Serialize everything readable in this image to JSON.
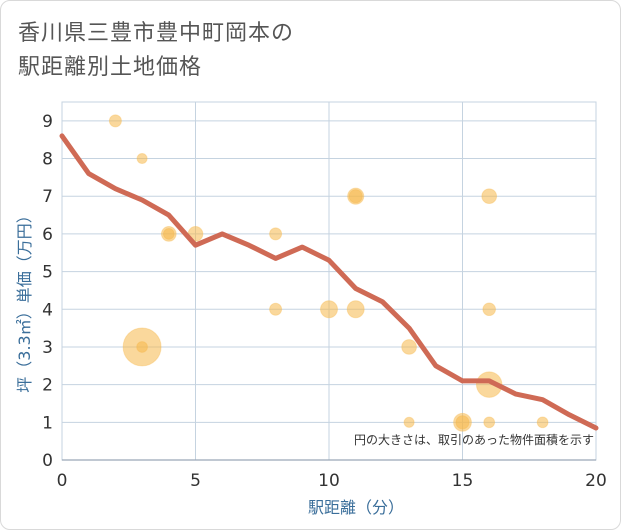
{
  "title_lines": [
    "香川県三豊市豊中町岡本の",
    "駅距離別土地価格"
  ],
  "chart_data": {
    "type": "scatter",
    "title": "香川県三豊市豊中町岡本の駅距離別土地価格",
    "xlabel": "駅距離（分）",
    "ylabel": "坪（3.3㎡）単価（万円）",
    "xlim": [
      0,
      20
    ],
    "ylim": [
      0,
      9.5
    ],
    "xticks": [
      0,
      5,
      10,
      15,
      20
    ],
    "yticks": [
      0,
      1,
      2,
      3,
      4,
      5,
      6,
      7,
      8,
      9
    ],
    "grid": true,
    "note": "円の大きさは、取引のあった物件面積を示す",
    "colors": {
      "bubble": "#f5b84a",
      "line": "#cf6a55",
      "grid": "#c5d3e0",
      "axis_text": "#3a6e9a"
    },
    "points": [
      {
        "x": 2,
        "y": 9.0,
        "size": 1
      },
      {
        "x": 3,
        "y": 8.0,
        "size": 0.7
      },
      {
        "x": 3,
        "y": 3.0,
        "size": 10
      },
      {
        "x": 3,
        "y": 3.0,
        "size": 0.8
      },
      {
        "x": 4,
        "y": 6.0,
        "size": 1.5
      },
      {
        "x": 4,
        "y": 6.0,
        "size": 0.8
      },
      {
        "x": 5,
        "y": 6.0,
        "size": 1.5
      },
      {
        "x": 8,
        "y": 6.0,
        "size": 1
      },
      {
        "x": 8,
        "y": 4.0,
        "size": 1
      },
      {
        "x": 10,
        "y": 4.0,
        "size": 2
      },
      {
        "x": 11,
        "y": 4.0,
        "size": 2
      },
      {
        "x": 11,
        "y": 7.0,
        "size": 1.8
      },
      {
        "x": 11,
        "y": 7.0,
        "size": 1.2
      },
      {
        "x": 13,
        "y": 3.0,
        "size": 1.5
      },
      {
        "x": 13,
        "y": 1.0,
        "size": 0.7
      },
      {
        "x": 15,
        "y": 1.0,
        "size": 2.2
      },
      {
        "x": 15,
        "y": 1.0,
        "size": 1.2
      },
      {
        "x": 16,
        "y": 7.0,
        "size": 1.5
      },
      {
        "x": 16,
        "y": 4.0,
        "size": 1.1
      },
      {
        "x": 16,
        "y": 2.0,
        "size": 4.5
      },
      {
        "x": 16,
        "y": 1.0,
        "size": 0.8
      },
      {
        "x": 18,
        "y": 1.0,
        "size": 0.8
      }
    ],
    "trend_line": {
      "x": [
        0,
        1,
        2,
        3,
        4,
        5,
        6,
        7,
        8,
        9,
        10,
        11,
        12,
        13,
        14,
        15,
        16,
        17,
        18,
        19,
        20
      ],
      "y": [
        8.6,
        7.6,
        7.2,
        6.9,
        6.5,
        5.7,
        6.0,
        5.7,
        5.35,
        5.65,
        5.3,
        4.55,
        4.2,
        3.5,
        2.5,
        2.1,
        2.1,
        1.75,
        1.6,
        1.2,
        0.85
      ]
    }
  }
}
